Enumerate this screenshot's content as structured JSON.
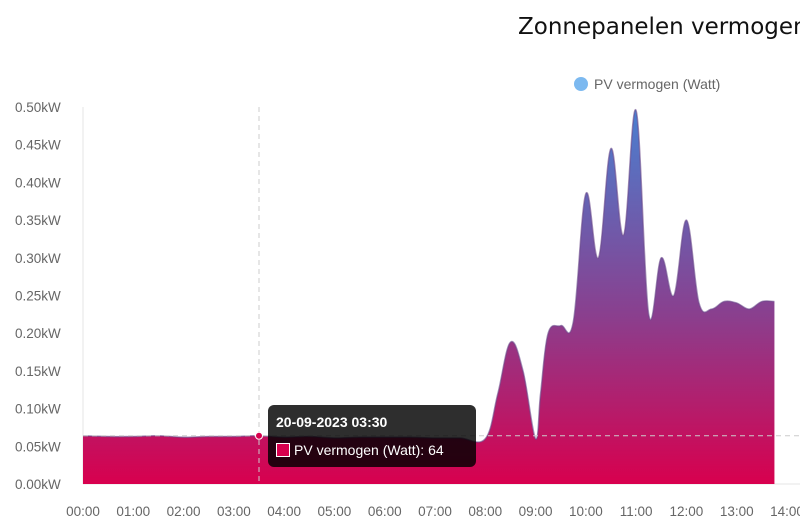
{
  "chart_data": {
    "type": "area",
    "title": "Zonnepanelen vermogen",
    "legend": {
      "label": "PV vermogen (Watt)",
      "position": "top-right",
      "color": "#7cb9f0"
    },
    "x_ticks": [
      "00:00",
      "01:00",
      "02:00",
      "03:00",
      "04:00",
      "05:00",
      "06:00",
      "07:00",
      "08:00",
      "09:00",
      "10:00",
      "11:00",
      "12:00",
      "13:00",
      "14:00"
    ],
    "y_ticks": [
      "0.00kW",
      "0.05kW",
      "0.10kW",
      "0.15kW",
      "0.20kW",
      "0.25kW",
      "0.30kW",
      "0.35kW",
      "0.40kW",
      "0.45kW",
      "0.50kW"
    ],
    "xlim": [
      0,
      14
    ],
    "ylim": [
      0,
      0.5
    ],
    "grid": false,
    "gradient": {
      "top": "#4a7fd0",
      "middle": "#8a3f8e",
      "bottom": "#d8004e"
    },
    "series": [
      {
        "name": "PV vermogen (Watt)",
        "x": [
          0,
          0.5,
          1,
          1.5,
          2,
          2.5,
          3,
          3.5,
          4,
          4.5,
          5,
          5.5,
          6,
          6.5,
          7,
          7.5,
          8,
          8.25,
          8.5,
          8.75,
          9,
          9.1,
          9.25,
          9.5,
          9.75,
          10,
          10.25,
          10.5,
          10.75,
          11,
          11.25,
          11.5,
          11.75,
          12,
          12.25,
          12.5,
          12.75,
          13,
          13.25,
          13.5,
          13.75
        ],
        "y": [
          0.064,
          0.063,
          0.063,
          0.064,
          0.062,
          0.063,
          0.063,
          0.064,
          0.062,
          0.063,
          0.061,
          0.062,
          0.062,
          0.062,
          0.061,
          0.061,
          0.06,
          0.12,
          0.188,
          0.15,
          0.06,
          0.12,
          0.2,
          0.21,
          0.215,
          0.385,
          0.3,
          0.445,
          0.33,
          0.495,
          0.225,
          0.3,
          0.25,
          0.35,
          0.24,
          0.232,
          0.242,
          0.24,
          0.232,
          0.242,
          0.242
        ]
      }
    ],
    "tooltip": {
      "title": "20-09-2023 03:30",
      "text": "PV vermogen (Watt): 64",
      "x": 3.5,
      "value": 0.064,
      "swatch_color": "#d8004e"
    }
  }
}
